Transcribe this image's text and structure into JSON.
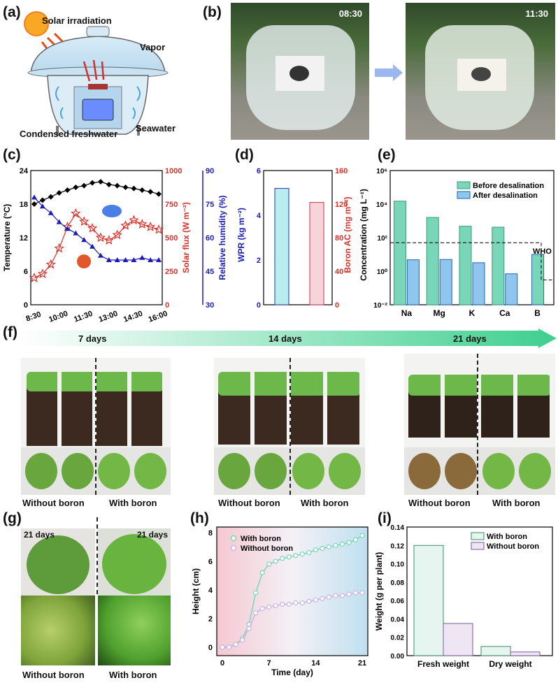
{
  "labels": {
    "a": "(a)",
    "b": "(b)",
    "c": "(c)",
    "d": "(d)",
    "e": "(e)",
    "f": "(f)",
    "g": "(g)",
    "h": "(h)",
    "i": "(i)"
  },
  "panel_a": {
    "solar": "Solar irradiation",
    "vapor": "Vapor",
    "seawater": "Seawater",
    "freshwater": "Condensed freshwater"
  },
  "panel_b": {
    "time1": "08:30",
    "time2": "11:30"
  },
  "panel_f": {
    "days": [
      "7 days",
      "14 days",
      "21 days"
    ],
    "without": "Without boron",
    "with": "With boron"
  },
  "panel_g": {
    "days": "21 days",
    "without": "Without boron",
    "with": "With boron"
  },
  "colors": {
    "temp": "#000000",
    "flux": "#d9312a",
    "humidity": "#1b1bb5",
    "teal": "#79d6b8",
    "blue_hatch": "#8fc6ee",
    "pink": "#e07a90",
    "purple": "#c9b3e6"
  },
  "chart_data": [
    {
      "panel": "c",
      "type": "line",
      "x_ticks": [
        "8:30",
        "10:00",
        "11:30",
        "13:00",
        "14:30",
        "16:00"
      ],
      "x_hours": [
        8.5,
        9,
        9.5,
        10,
        10.5,
        11,
        11.5,
        12,
        12.5,
        13,
        13.5,
        14,
        14.5,
        15,
        15.5,
        16
      ],
      "xlim": [
        8.5,
        16
      ],
      "series": [
        {
          "axis": "Temperature (°C)",
          "ylim": [
            0,
            24
          ],
          "yticks": [
            0,
            6,
            12,
            18,
            24
          ],
          "marker": "diamond",
          "values": [
            18,
            18.7,
            19.3,
            20,
            20.5,
            21,
            21.3,
            21.8,
            22,
            21.5,
            21.3,
            21,
            20.8,
            20.5,
            20.2,
            19.8
          ]
        },
        {
          "axis": "Solar flux (W m⁻²)",
          "ylim": [
            0,
            1000
          ],
          "yticks": [
            0,
            250,
            500,
            750,
            1000
          ],
          "marker": "star",
          "values": [
            200,
            230,
            300,
            420,
            580,
            680,
            620,
            570,
            500,
            480,
            520,
            590,
            630,
            600,
            580,
            560
          ]
        },
        {
          "axis": "Relative humidity (%)",
          "ylim": [
            30,
            90
          ],
          "yticks": [
            30,
            45,
            60,
            75,
            90
          ],
          "marker": "triangle",
          "values": [
            78,
            74,
            71,
            67,
            64,
            62,
            59,
            56,
            52,
            50,
            50,
            50,
            50,
            51,
            50,
            50
          ]
        }
      ]
    },
    {
      "panel": "d",
      "type": "bar",
      "categories": [
        "WPR",
        "Boron AC"
      ],
      "left_axis": {
        "label": "WPR (kg m⁻²)",
        "ylim": [
          0,
          6
        ],
        "yticks": [
          0,
          2,
          4,
          6
        ],
        "value": 5.2
      },
      "right_axis": {
        "label": "Boron AC (mg m⁻²)",
        "ylim": [
          0,
          160
        ],
        "yticks": [
          0,
          40,
          80,
          120,
          160
        ],
        "value": 122
      }
    },
    {
      "panel": "e",
      "type": "bar",
      "yscale": "log",
      "ylabel": "Concentration (mg L⁻¹)",
      "ylim": [
        0.01,
        1000000
      ],
      "yticks": [
        "10⁻²",
        "10⁰",
        "10²",
        "10⁴",
        "10⁶"
      ],
      "categories": [
        "Na",
        "Mg",
        "K",
        "Ca",
        "B"
      ],
      "series": [
        {
          "name": "Before desalination",
          "values": [
            15000,
            1600,
            480,
            420,
            null
          ]
        },
        {
          "name": "After desalination",
          "values": [
            4.8,
            5.0,
            3.2,
            0.7,
            10
          ]
        }
      ],
      "annotation": "WHO",
      "who_limits": [
        50,
        0.3
      ]
    },
    {
      "panel": "h",
      "type": "line",
      "xlabel": "Time (day)",
      "ylabel": "Height (cm)",
      "xlim": [
        0,
        21
      ],
      "ylim": [
        0,
        8
      ],
      "xticks": [
        0,
        7,
        14,
        21
      ],
      "yticks": [
        0,
        2,
        4,
        6,
        8
      ],
      "x": [
        0,
        1,
        2,
        3,
        4,
        5,
        6,
        7,
        8,
        9,
        10,
        11,
        12,
        13,
        14,
        15,
        16,
        17,
        18,
        19,
        20,
        21
      ],
      "series": [
        {
          "name": "With boron",
          "values": [
            0,
            0,
            0.2,
            0.6,
            1.6,
            3.8,
            5.2,
            5.8,
            6.0,
            6.2,
            6.3,
            6.4,
            6.5,
            6.6,
            6.8,
            6.9,
            7.0,
            7.1,
            7.2,
            7.3,
            7.5,
            7.8
          ]
        },
        {
          "name": "Without boron",
          "values": [
            0,
            0,
            0.2,
            0.5,
            1.3,
            2.4,
            2.7,
            2.8,
            2.9,
            3.0,
            3.0,
            3.1,
            3.1,
            3.2,
            3.3,
            3.4,
            3.5,
            3.6,
            3.6,
            3.7,
            3.8,
            3.8
          ]
        }
      ]
    },
    {
      "panel": "i",
      "type": "bar",
      "ylabel": "Weight (g per plant)",
      "ylim": [
        0,
        0.14
      ],
      "yticks": [
        "0.00",
        "0.02",
        "0.04",
        "0.06",
        "0.08",
        "0.10",
        "0.12",
        "0.14"
      ],
      "categories": [
        "Fresh weight",
        "Dry weight"
      ],
      "series": [
        {
          "name": "With boron",
          "values": [
            0.12,
            0.01
          ]
        },
        {
          "name": "Without boron",
          "values": [
            0.035,
            0.004
          ]
        }
      ]
    }
  ]
}
